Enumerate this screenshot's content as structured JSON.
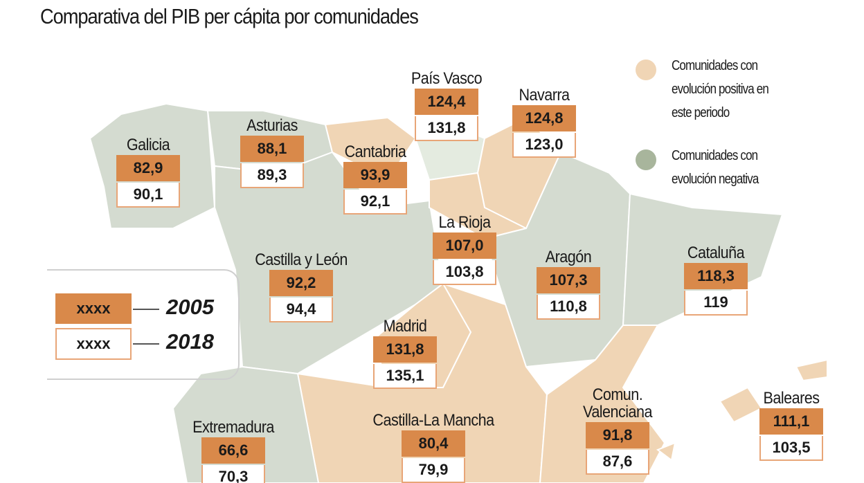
{
  "title": "Comparativa del PIB per cápita por comunidades",
  "colors": {
    "box_2005": "#d9894a",
    "positive": "#f0d5b5",
    "negative": "#d4dbd0",
    "negative_dot": "#a8b59c"
  },
  "legend": {
    "placeholder_2005": "xxxx",
    "year_2005": "2005",
    "placeholder_2018": "xxxx",
    "year_2018": "2018"
  },
  "key": {
    "positive": "Comunidades con evolución positiva en este periodo",
    "negative": "Comunidades con evolución negativa"
  },
  "regions": [
    {
      "name": "Galicia",
      "v2005": "82,9",
      "v2018": "90,1"
    },
    {
      "name": "Asturias",
      "v2005": "88,1",
      "v2018": "89,3"
    },
    {
      "name": "Cantabria",
      "v2005": "93,9",
      "v2018": "92,1"
    },
    {
      "name": "País Vasco",
      "v2005": "124,4",
      "v2018": "131,8"
    },
    {
      "name": "Navarra",
      "v2005": "124,8",
      "v2018": "123,0"
    },
    {
      "name": "La Rioja",
      "v2005": "107,0",
      "v2018": "103,8"
    },
    {
      "name": "Castilla y León",
      "v2005": "92,2",
      "v2018": "94,4"
    },
    {
      "name": "Aragón",
      "v2005": "107,3",
      "v2018": "110,8"
    },
    {
      "name": "Cataluña",
      "v2005": "118,3",
      "v2018": "119"
    },
    {
      "name": "Madrid",
      "v2005": "131,8",
      "v2018": "135,1"
    },
    {
      "name": "Extremadura",
      "v2005": "66,6",
      "v2018": "70,3"
    },
    {
      "name": "Castilla-La Mancha",
      "v2005": "80,4",
      "v2018": "79,9"
    },
    {
      "name": "Comun. Valenciana",
      "v2005": "91,8",
      "v2018": "87,6"
    },
    {
      "name": "Baleares",
      "v2005": "111,1",
      "v2018": "103,5"
    }
  ]
}
